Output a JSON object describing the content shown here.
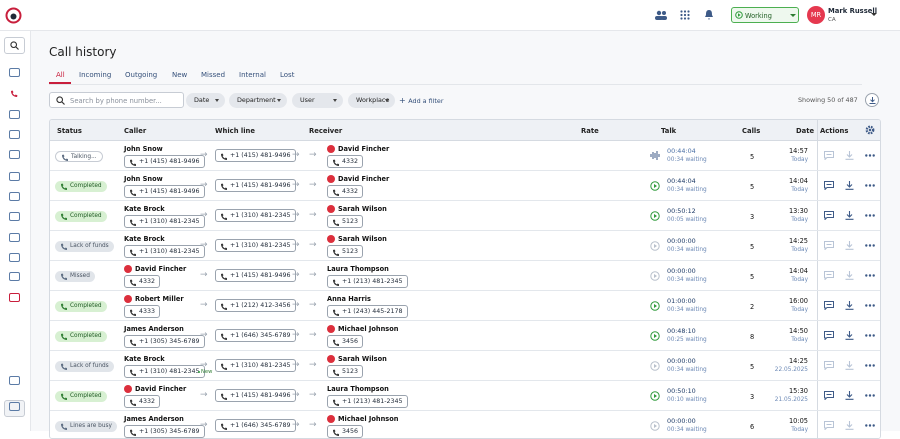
{
  "header": {
    "status": "Working",
    "avatar": "MR",
    "user": "Mark Russell",
    "region": "CA"
  },
  "page": {
    "title": "Call history",
    "tabs": [
      "All",
      "Incoming",
      "Outgoing",
      "New",
      "Missed",
      "Internal",
      "Lost"
    ],
    "search_placeholder": "Search by phone number...",
    "filters": [
      "Date",
      "Department",
      "User",
      "Workplace"
    ],
    "add_filter": "Add a filter",
    "showing": "Showing 50 of 487"
  },
  "table": {
    "columns": [
      "Status",
      "Caller",
      "Which line",
      "Receiver",
      "Rate",
      "Talk",
      "Calls",
      "Date",
      "Actions"
    ],
    "rows": [
      {
        "status": "Talking...",
        "badge": "#ffffff",
        "icon_color": "#4a6fa5",
        "caller": {
          "name": "John Snow",
          "avatar": false,
          "phone": "+1 (415) 481-9496"
        },
        "line": "+1 (415) 481-9496",
        "receiver": {
          "name": "David Fincher",
          "avatar": true,
          "phone": "4332"
        },
        "talk": "00:44:04",
        "waiting": "00:34 waiting",
        "calls": 5,
        "time": "14:57",
        "day": "Today"
      },
      {
        "status": "Completed",
        "badge": "#d7f0d2",
        "icon_color": "#2e9a3a",
        "caller": {
          "name": "John Snow",
          "avatar": false,
          "phone": "+1 (415) 481-9496"
        },
        "line": "+1 (415) 481-9496",
        "receiver": {
          "name": "David Fincher",
          "avatar": true,
          "phone": "4332"
        },
        "talk": "00:44:04",
        "waiting": "00:34 waiting",
        "calls": 5,
        "time": "14:04",
        "day": "Today"
      },
      {
        "status": "Completed",
        "badge": "#d7f0d2",
        "icon_color": "#2e9a3a",
        "caller": {
          "name": "Kate Brock",
          "avatar": false,
          "phone": "+1 (310) 481-2345"
        },
        "line": "+1 (310) 481-2345",
        "receiver": {
          "name": "Sarah Wilson",
          "avatar": true,
          "phone": "5123"
        },
        "talk": "00:50:12",
        "waiting": "00:05 waiting",
        "calls": 3,
        "time": "13:30",
        "day": "Today"
      },
      {
        "status": "Lack of funds",
        "badge": "#e1e5ea",
        "icon_color": "#b8c0cb",
        "caller": {
          "name": "Kate Brock",
          "avatar": false,
          "phone": "+1 (310) 481-2345"
        },
        "line": "+1 (310) 481-2345",
        "receiver": {
          "name": "Sarah Wilson",
          "avatar": true,
          "phone": "5123"
        },
        "talk": "00:00:00",
        "waiting": "00:34 waiting",
        "calls": 5,
        "time": "14:25",
        "day": "Today"
      },
      {
        "status": "Missed",
        "badge": "#e1e5ea",
        "icon_color": "#b8c0cb",
        "caller": {
          "name": "David Fincher",
          "avatar": true,
          "phone": "4332"
        },
        "line": "+1 (415) 481-9496",
        "receiver": {
          "name": "Laura Thompson",
          "avatar": false,
          "phone": "+1 (213) 481-2345"
        },
        "talk": "00:00:00",
        "waiting": "00:34 waiting",
        "calls": 5,
        "time": "14:04",
        "day": "Today"
      },
      {
        "status": "Completed",
        "badge": "#d7f0d2",
        "icon_color": "#2e9a3a",
        "caller": {
          "name": "Robert Miller",
          "avatar": true,
          "phone": "4333"
        },
        "line": "+1 (212) 412-3456",
        "receiver": {
          "name": "Anna Harris",
          "avatar": false,
          "phone": "+1 (243) 445-2178"
        },
        "talk": "01:00:00",
        "waiting": "00:34 waiting",
        "calls": 2,
        "time": "16:00",
        "day": "Today"
      },
      {
        "status": "Completed",
        "badge": "#d7f0d2",
        "icon_color": "#2e9a3a",
        "caller": {
          "name": "James Anderson",
          "avatar": false,
          "phone": "+1 (305) 345-6789"
        },
        "line": "+1 (646) 345-6789",
        "receiver": {
          "name": "Michael Johnson",
          "avatar": true,
          "phone": "3456"
        },
        "talk": "00:48:10",
        "waiting": "00:25 waiting",
        "calls": 8,
        "time": "14:50",
        "day": "Today"
      },
      {
        "status": "Lack of funds",
        "badge": "#e1e5ea",
        "icon_color": "#b8c0cb",
        "caller": {
          "name": "Kate Brock",
          "avatar": false,
          "phone": "+1 (310) 481-2345",
          "tag": "New"
        },
        "line": "+1 (310) 481-2345",
        "receiver": {
          "name": "Sarah Wilson",
          "avatar": true,
          "phone": "5123"
        },
        "talk": "00:00:00",
        "waiting": "00:34 waiting",
        "calls": 5,
        "time": "14:25",
        "day": "22.05.2025"
      },
      {
        "status": "Completed",
        "badge": "#d7f0d2",
        "icon_color": "#2e9a3a",
        "caller": {
          "name": "David Fincher",
          "avatar": true,
          "phone": "4332"
        },
        "line": "+1 (415) 481-9496",
        "receiver": {
          "name": "Laura Thompson",
          "avatar": false,
          "phone": "+1 (213) 481-2345"
        },
        "talk": "00:50:10",
        "waiting": "00:10 waiting",
        "calls": 3,
        "time": "15:30",
        "day": "21.05.2025"
      },
      {
        "status": "Lines are busy",
        "badge": "#e1e5ea",
        "icon_color": "#b8c0cb",
        "caller": {
          "name": "James Anderson",
          "avatar": false,
          "phone": "+1 (305) 345-6789"
        },
        "line": "+1 (646) 345-6789",
        "receiver": {
          "name": "Michael Johnson",
          "avatar": true,
          "phone": "3456"
        },
        "talk": "00:00:00",
        "waiting": "00:34 waiting",
        "calls": 6,
        "time": "10:05",
        "day": "Today"
      }
    ]
  }
}
